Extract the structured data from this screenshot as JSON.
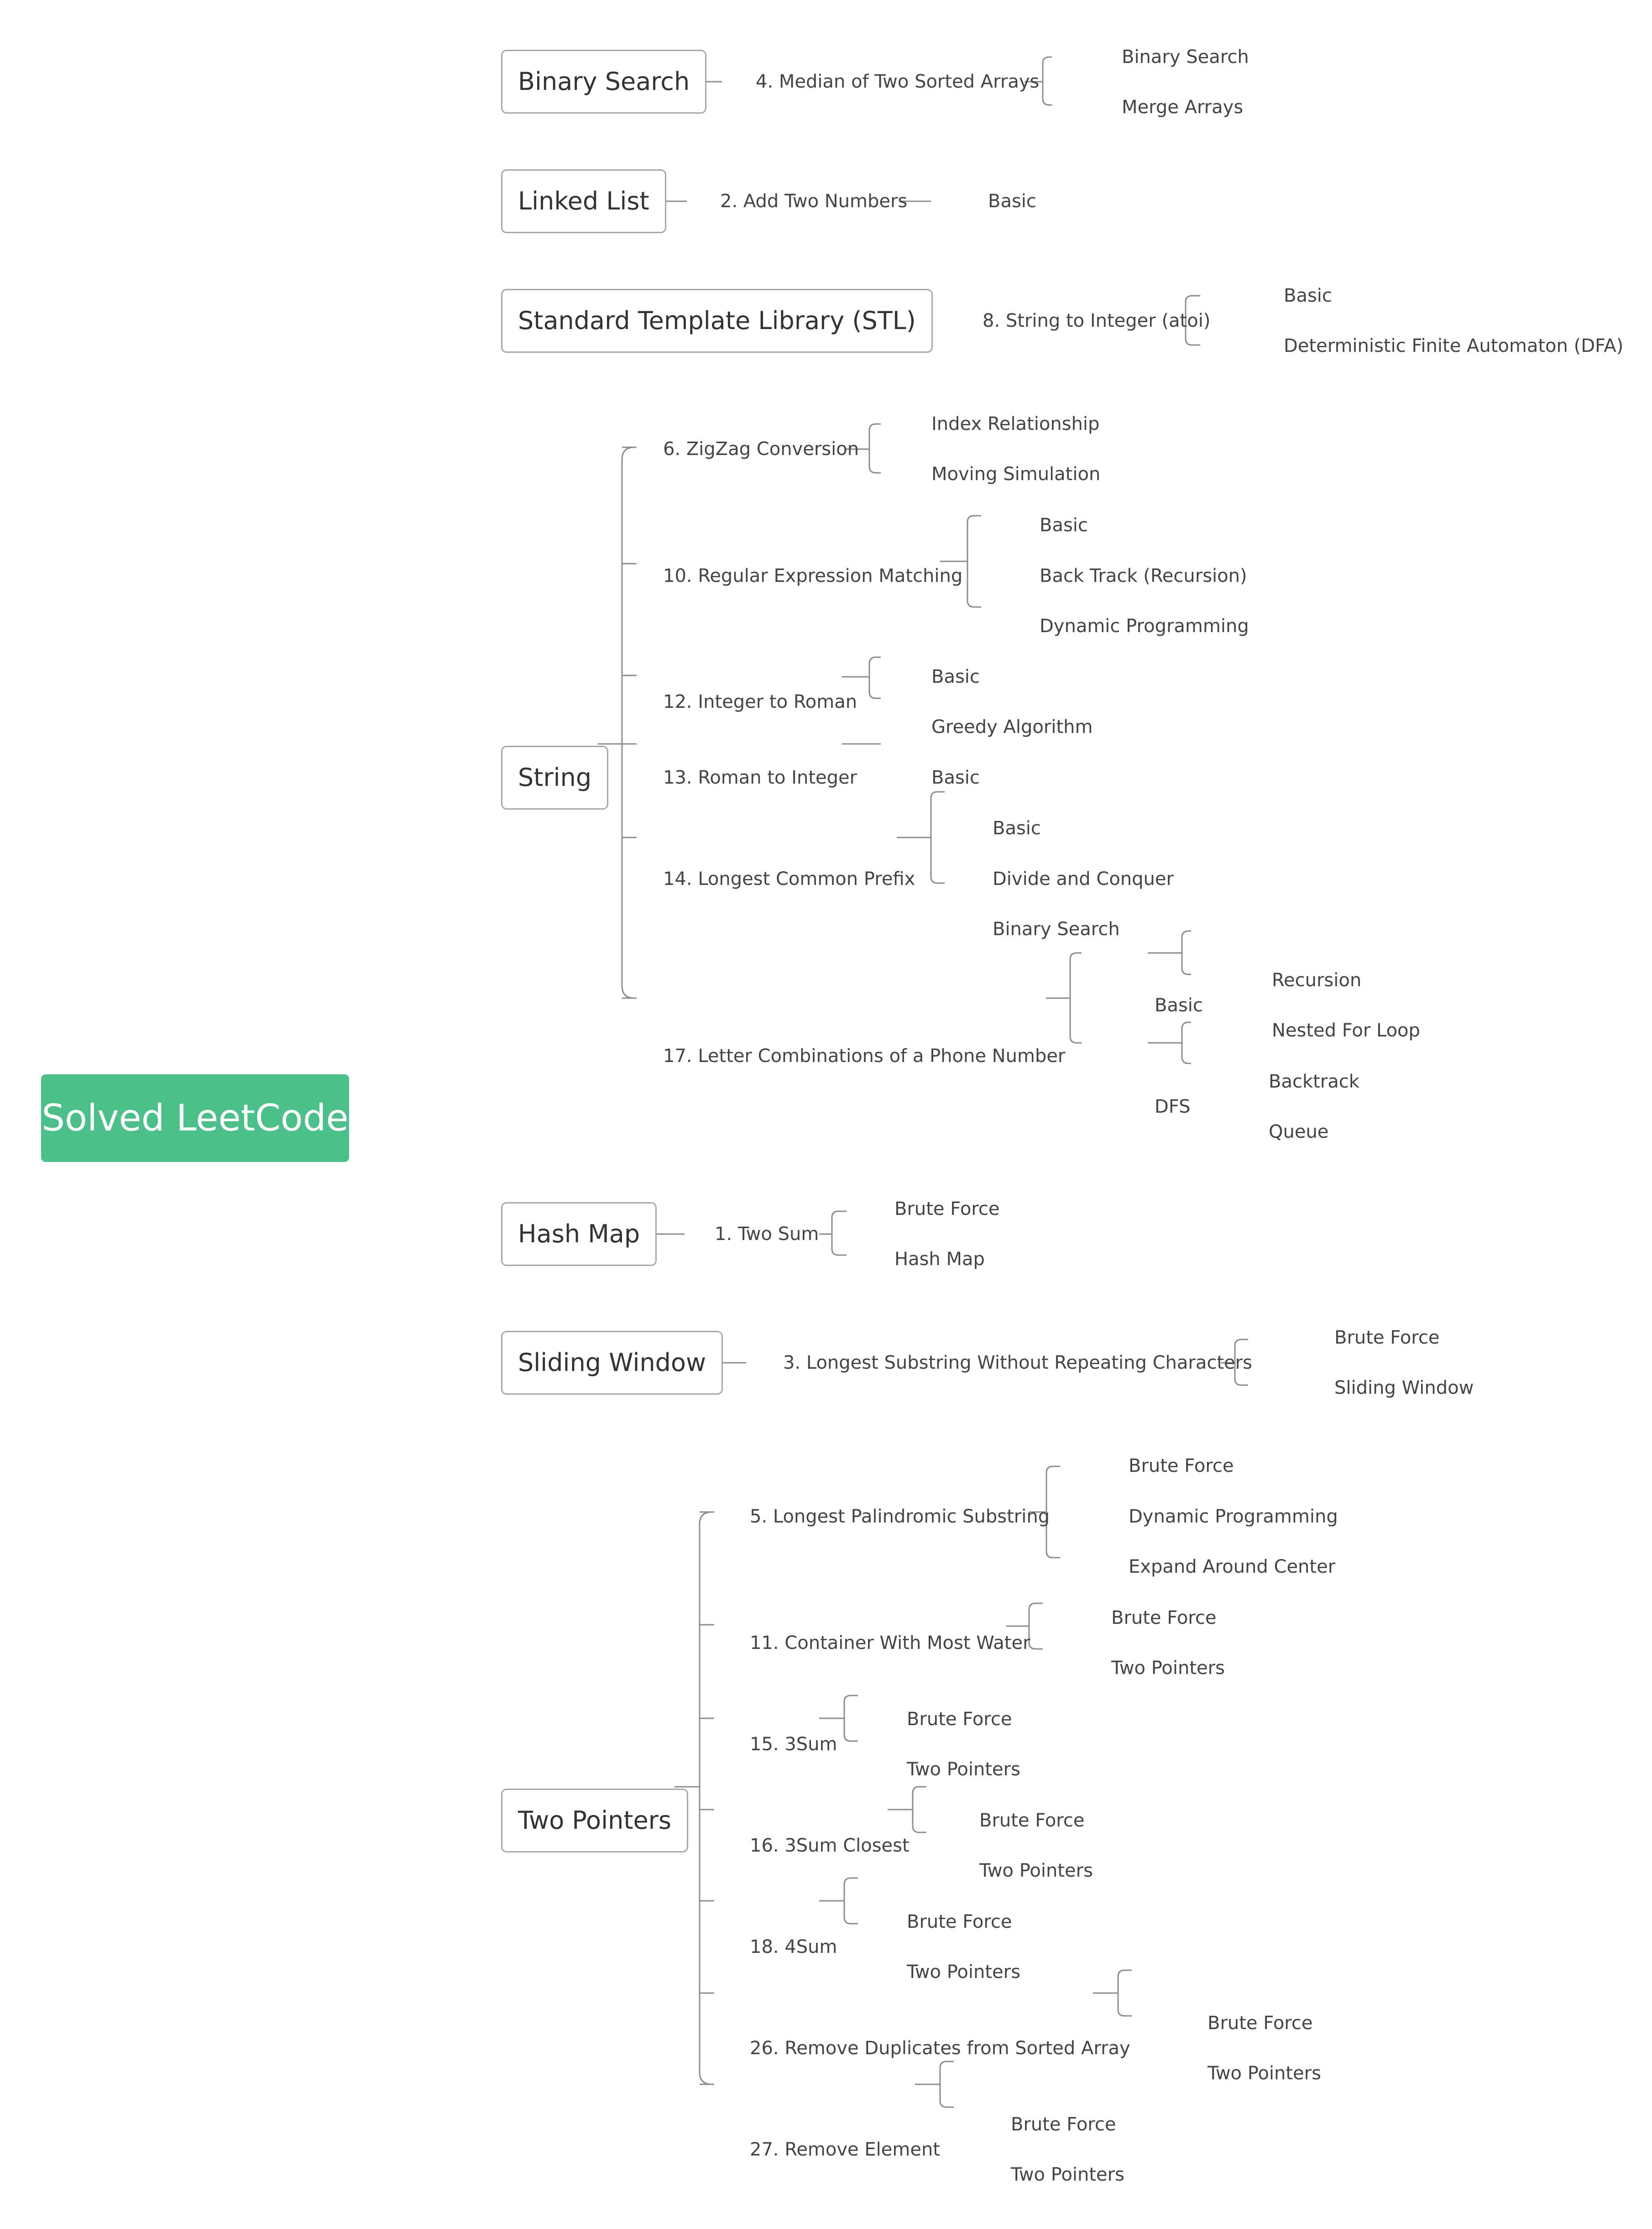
{
  "root": {
    "label": "Solved LeetCode",
    "color": "#4dbf8a"
  },
  "categories": [
    {
      "label": "Binary Search",
      "problems": [
        {
          "label": "4. Median of Two Sorted Arrays",
          "solutions": [
            "Binary Search",
            "Merge Arrays"
          ]
        }
      ]
    },
    {
      "label": "Linked List",
      "problems": [
        {
          "label": "2. Add Two Numbers",
          "solutions": [
            "Basic"
          ]
        }
      ]
    },
    {
      "label": "Standard Template Library (STL)",
      "problems": [
        {
          "label": "8. String to Integer (atoi)",
          "solutions": [
            "Basic",
            "Deterministic Finite Automaton (DFA)"
          ]
        }
      ]
    },
    {
      "label": "String",
      "problems": [
        {
          "label": "6. ZigZag Conversion",
          "solutions": [
            "Index Relationship",
            "Moving Simulation"
          ]
        },
        {
          "label": "10. Regular Expression Matching",
          "solutions": [
            "Basic",
            "Back Track (Recursion)",
            "Dynamic Programming"
          ]
        },
        {
          "label": "12. Integer to Roman",
          "solutions": [
            "Basic",
            "Greedy Algorithm"
          ]
        },
        {
          "label": "13. Roman to Integer",
          "solutions": [
            "Basic"
          ]
        },
        {
          "label": "14. Longest Common Prefix",
          "solutions": [
            "Basic",
            "Divide and Conquer",
            "Binary Search"
          ]
        },
        {
          "label": "17.  Letter Combinations of a Phone Number",
          "subgroups": [
            {
              "label": "Basic",
              "solutions": [
                "Recursion",
                "Nested For Loop"
              ]
            },
            {
              "label": "DFS",
              "solutions": [
                "Backtrack",
                "Queue"
              ]
            }
          ]
        }
      ]
    },
    {
      "label": "Hash Map",
      "problems": [
        {
          "label": "1. Two Sum",
          "solutions": [
            "Brute Force",
            "Hash Map"
          ]
        }
      ]
    },
    {
      "label": "Sliding Window",
      "problems": [
        {
          "label": "3. Longest Substring Without Repeating Characters",
          "solutions": [
            "Brute Force",
            "Sliding Window"
          ]
        }
      ]
    },
    {
      "label": "Two Pointers",
      "problems": [
        {
          "label": "5. Longest Palindromic Substring",
          "solutions": [
            "Brute Force",
            "Dynamic Programming",
            "Expand Around Center"
          ]
        },
        {
          "label": "11. Container With Most Water",
          "solutions": [
            "Brute Force",
            "Two Pointers"
          ]
        },
        {
          "label": "15. 3Sum",
          "solutions": [
            "Brute Force",
            "Two Pointers"
          ]
        },
        {
          "label": "16. 3Sum Closest",
          "solutions": [
            "Brute Force",
            "Two Pointers"
          ]
        },
        {
          "label": "18. 4Sum",
          "solutions": [
            "Brute Force",
            "Two Pointers"
          ]
        },
        {
          "label": "26. Remove Duplicates from Sorted Array",
          "solutions": [
            "Brute Force",
            "Two Pointers"
          ]
        },
        {
          "label": "27. Remove Element",
          "solutions": [
            "Brute Force",
            "Two Pointers"
          ]
        }
      ]
    }
  ]
}
